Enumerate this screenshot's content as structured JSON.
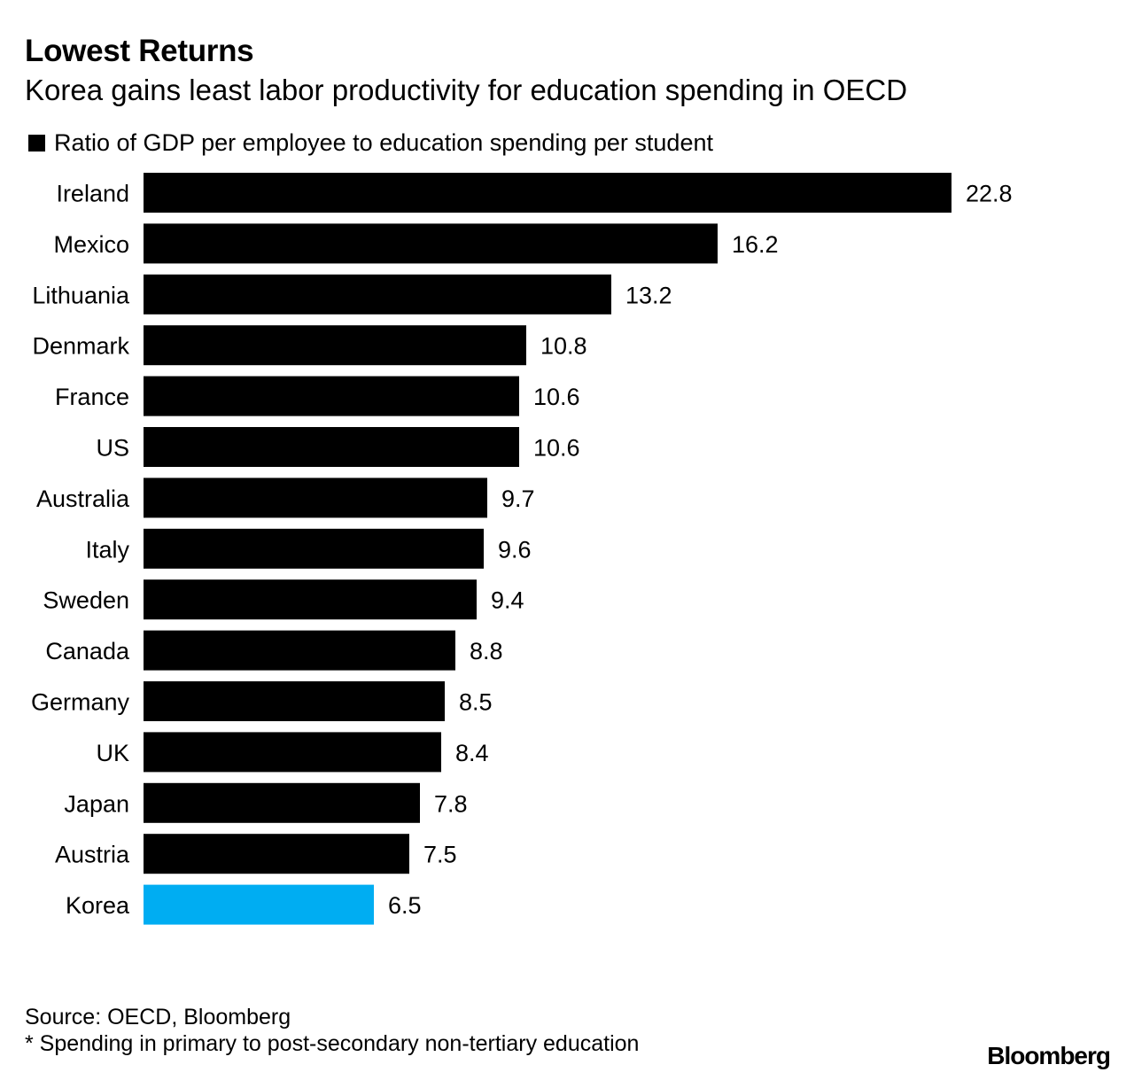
{
  "header": {
    "title": "Lowest Returns",
    "subtitle": "Korea gains least labor productivity for education spending in OECD"
  },
  "legend": {
    "label": "Ratio of GDP per employee to education spending per student"
  },
  "footer": {
    "source": "Source: OECD, Bloomberg",
    "note": "* Spending in primary to post-secondary non-tertiary education",
    "brand": "Bloomberg"
  },
  "colors": {
    "bar": "#000000",
    "highlight": "#00adf2"
  },
  "chart_data": {
    "type": "bar",
    "orientation": "horizontal",
    "title": "Lowest Returns",
    "subtitle": "Korea gains least labor productivity for education spending in OECD",
    "categories": [
      "Ireland",
      "Mexico",
      "Lithuania",
      "Denmark",
      "France",
      "US",
      "Australia",
      "Italy",
      "Sweden",
      "Canada",
      "Germany",
      "UK",
      "Japan",
      "Austria",
      "Korea"
    ],
    "series": [
      {
        "name": "Ratio of GDP per employee to education spending per student",
        "values": [
          22.8,
          16.2,
          13.2,
          10.8,
          10.6,
          10.6,
          9.7,
          9.6,
          9.4,
          8.8,
          8.5,
          8.4,
          7.8,
          7.5,
          6.5
        ]
      }
    ],
    "highlight": "Korea",
    "xlim": [
      0,
      22.8
    ],
    "grid": false,
    "data_labels": true,
    "legend_position": "top-left"
  }
}
